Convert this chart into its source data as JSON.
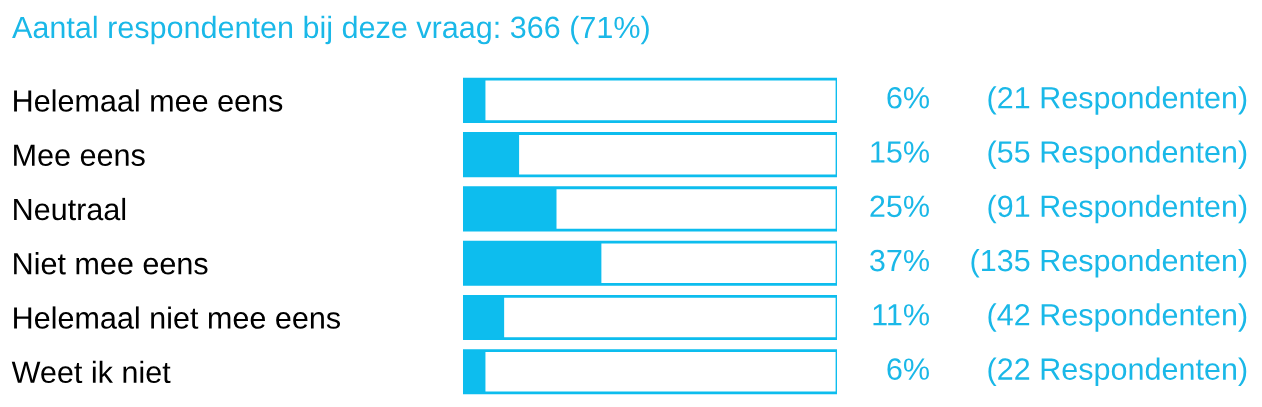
{
  "chart_data": {
    "type": "bar",
    "orientation": "horizontal",
    "title": "Aantal respondenten bij deze vraag: 366 (71%)",
    "categories": [
      "Helemaal mee eens",
      "Mee eens",
      "Neutraal",
      "Niet mee eens",
      "Helemaal niet mee eens",
      "Weet ik niet"
    ],
    "values": [
      6,
      15,
      25,
      37,
      11,
      6
    ],
    "value_labels": [
      "6%",
      "15%",
      "25%",
      "37%",
      "11%",
      "6%"
    ],
    "color": "#0dbdee",
    "xlim": [
      0,
      100
    ],
    "tick_labels": "y",
    "grid": false,
    "legend": false,
    "annotations": [
      "(21 Respondenten)",
      "(55 Respondenten)",
      "(91 Respondenten)",
      "(135 Respondenten)",
      "(42 Respondenten)",
      "(22 Respondenten)"
    ]
  }
}
